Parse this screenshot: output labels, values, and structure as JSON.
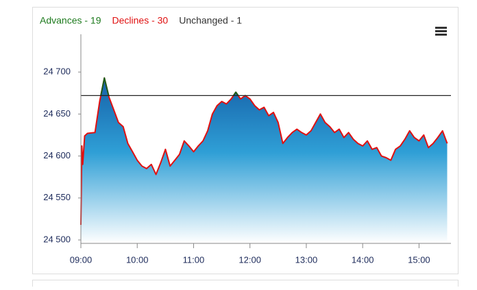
{
  "chart_data": {
    "type": "area",
    "stats": [
      {
        "label": "Advances - 19",
        "color": "#1d7a1d"
      },
      {
        "label": "Declines - 30",
        "color": "#e01010"
      },
      {
        "label": "Unchanged - 1",
        "color": "#333333"
      }
    ],
    "x": [
      540,
      541,
      542,
      544,
      547,
      555,
      560,
      565,
      570,
      575,
      580,
      585,
      590,
      595,
      600,
      605,
      610,
      615,
      620,
      625,
      630,
      635,
      640,
      645,
      650,
      655,
      660,
      665,
      670,
      675,
      680,
      685,
      690,
      695,
      700,
      705,
      710,
      715,
      720,
      725,
      730,
      735,
      740,
      745,
      750,
      755,
      760,
      765,
      770,
      775,
      780,
      785,
      790,
      795,
      800,
      805,
      810,
      815,
      820,
      825,
      830,
      835,
      840,
      845,
      850,
      855,
      860,
      865,
      870,
      875,
      880,
      885,
      890,
      895,
      900,
      905,
      910,
      915,
      920,
      925,
      930
    ],
    "values": [
      24518,
      24612,
      24590,
      24624,
      24627,
      24628,
      24665,
      24693,
      24670,
      24655,
      24640,
      24635,
      24615,
      24605,
      24595,
      24588,
      24585,
      24590,
      24578,
      24592,
      24608,
      24588,
      24595,
      24602,
      24618,
      24612,
      24605,
      24612,
      24618,
      24630,
      24650,
      24660,
      24665,
      24662,
      24668,
      24676,
      24668,
      24672,
      24668,
      24660,
      24655,
      24658,
      24648,
      24652,
      24640,
      24615,
      24622,
      24628,
      24632,
      24628,
      24625,
      24630,
      24640,
      24650,
      24640,
      24635,
      24628,
      24632,
      24622,
      24628,
      24620,
      24615,
      24612,
      24618,
      24608,
      24610,
      24600,
      24598,
      24595,
      24608,
      24612,
      24620,
      24630,
      24622,
      24618,
      24625,
      24610,
      24615,
      24622,
      24630,
      24615
    ],
    "color": "#e01010",
    "above_color": "#1a5e1a",
    "reference_line": 24672,
    "reference_color": "#222222",
    "xlim": [
      540,
      934
    ],
    "xticks": [
      {
        "value": 540,
        "label": "09:00"
      },
      {
        "value": 600,
        "label": "10:00"
      },
      {
        "value": 660,
        "label": "11:00"
      },
      {
        "value": 720,
        "label": "12:00"
      },
      {
        "value": 780,
        "label": "13:00"
      },
      {
        "value": 840,
        "label": "14:00"
      },
      {
        "value": 900,
        "label": "15:00"
      }
    ],
    "ylim": [
      24500,
      24745
    ],
    "yticks": [
      {
        "value": 24500,
        "label": "24 500"
      },
      {
        "value": 24550,
        "label": "24 550"
      },
      {
        "value": 24600,
        "label": "24 600"
      },
      {
        "value": 24650,
        "label": "24 650"
      },
      {
        "value": 24700,
        "label": "24 700"
      }
    ]
  }
}
